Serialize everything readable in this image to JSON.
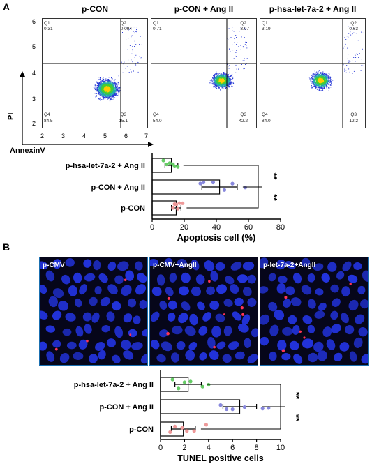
{
  "panel_a_label": "A",
  "panel_b_label": "B",
  "flow": {
    "y_axis_label": "PI",
    "x_axis_label": "AnnexinV",
    "y_ticks": [
      "6",
      "5",
      "4",
      "3",
      "2"
    ],
    "x_ticks": [
      "2",
      "3",
      "4",
      "5",
      "6",
      "7"
    ],
    "plots": [
      {
        "title": "p-CON",
        "q1_name": "Q1",
        "q1": "0.31",
        "q2_name": "Q2",
        "q2": "0.094",
        "q3_name": "Q3",
        "q3": "15.1",
        "q4_name": "Q4",
        "q4": "84.5"
      },
      {
        "title": "p-CON + Ang II",
        "q1_name": "Q1",
        "q1": "0.71",
        "q2_name": "Q2",
        "q2": "3.07",
        "q3_name": "Q3",
        "q3": "42.2",
        "q4_name": "Q4",
        "q4": "54.0"
      },
      {
        "title": "p-hsa-let-7a-2 + Ang II",
        "q1_name": "Q1",
        "q1": "3.19",
        "q2_name": "Q2",
        "q2": "0.63",
        "q3_name": "Q3",
        "q3": "12.2",
        "q4_name": "Q4",
        "q4": "84.0"
      }
    ]
  },
  "micro": {
    "images": [
      {
        "label": "p-CMV"
      },
      {
        "label": "p-CMV+AngII"
      },
      {
        "label": "p-let-7a-2+AngII"
      }
    ],
    "colors": {
      "nuclei": "#2233dd",
      "background": "#06061a",
      "tunel": "#ff3355",
      "border": "#1a6fb0"
    }
  },
  "chart_data": [
    {
      "type": "bar",
      "orientation": "horizontal",
      "categories": [
        "p-hsa-let-7a-2 + Ang II",
        "p-CON + Ang II",
        "p-CON"
      ],
      "values": [
        12,
        42,
        15
      ],
      "errors": [
        4,
        11,
        3
      ],
      "points": [
        [
          7,
          9,
          11,
          13,
          14,
          16
        ],
        [
          30,
          32,
          38,
          45,
          50,
          58
        ],
        [
          13,
          14,
          15,
          16,
          17,
          19
        ]
      ],
      "point_colors": [
        "#66cc66",
        "#8888dd",
        "#ee9999"
      ],
      "xlabel": "Apoptosis cell (%)",
      "xlim": [
        0,
        80
      ],
      "xticks": [
        "0",
        "20",
        "40",
        "60",
        "80"
      ],
      "significance": [
        "**",
        "**"
      ]
    },
    {
      "type": "bar",
      "orientation": "horizontal",
      "categories": [
        "p-hsa-let-7a-2 + Ang II",
        "p-CON + Ang II",
        "p-CON"
      ],
      "values": [
        2.3,
        6.6,
        1.9
      ],
      "errors": [
        1.1,
        1.4,
        1.0
      ],
      "points": [
        [
          1.0,
          1.5,
          2.0,
          2.5,
          3.5,
          4.0
        ],
        [
          5.0,
          5.5,
          6.0,
          7.0,
          8.5,
          9.0
        ],
        [
          0.8,
          1.2,
          1.8,
          2.2,
          2.8,
          3.8
        ]
      ],
      "point_colors": [
        "#66cc66",
        "#8888dd",
        "#ee9999"
      ],
      "xlabel": "TUNEL positive cells",
      "xlim": [
        0,
        10
      ],
      "xticks": [
        "0",
        "2",
        "4",
        "6",
        "8",
        "10"
      ],
      "significance": [
        "**",
        "**"
      ]
    }
  ]
}
